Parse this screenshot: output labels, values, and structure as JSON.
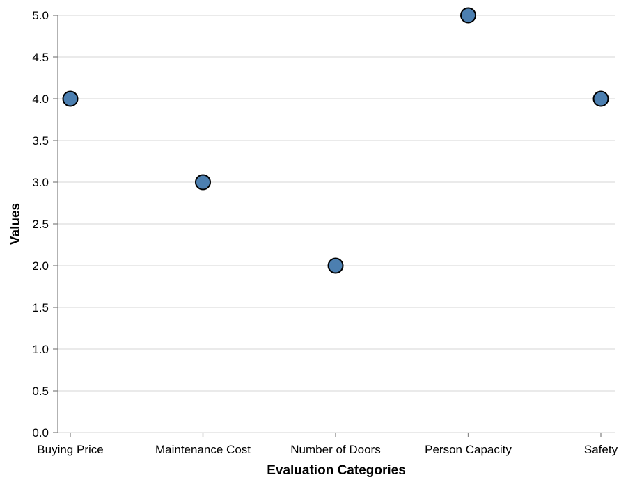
{
  "chart_data": {
    "type": "scatter",
    "categories": [
      "Buying Price",
      "Maintenance Cost",
      "Number of Doors",
      "Person Capacity",
      "Safety"
    ],
    "values": [
      4,
      3,
      2,
      5,
      4
    ],
    "xlabel": "Evaluation Categories",
    "ylabel": "Values",
    "ylim": [
      0,
      5
    ],
    "yticks": [
      "0.0",
      "0.5",
      "1.0",
      "1.5",
      "2.0",
      "2.5",
      "3.0",
      "3.5",
      "4.0",
      "4.5",
      "5.0"
    ],
    "grid": true,
    "colors": {
      "point": "#4c7fb0",
      "point_stroke": "#000000",
      "grid": "#dddddd",
      "axis": "#888888"
    }
  }
}
